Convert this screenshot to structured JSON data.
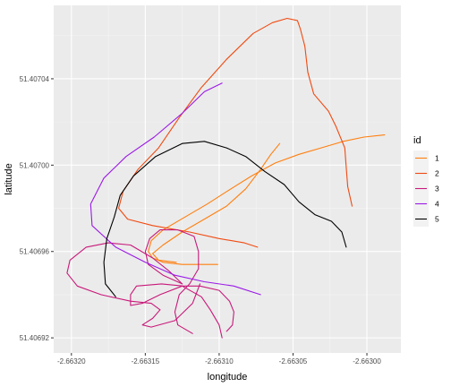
{
  "chart_data": {
    "type": "line",
    "title": "",
    "xlabel": "longitude",
    "ylabel": "latitude",
    "xlim": [
      -2.663212,
      -2.662977
    ],
    "ylim": [
      51.406913,
      51.407074
    ],
    "x_ticks": [
      -2.6632,
      -2.66315,
      -2.6631,
      -2.66305,
      -2.663
    ],
    "x_tick_labels": [
      "-2.66320",
      "-2.66315",
      "-2.66310",
      "-2.66305",
      "-2.66300"
    ],
    "y_ticks": [
      51.40692,
      51.40696,
      51.407,
      51.40704
    ],
    "y_tick_labels": [
      "51.40692",
      "51.40696",
      "51.40700",
      "51.40704"
    ],
    "grid": true,
    "legend": {
      "title": "id",
      "position": "right"
    },
    "series": [
      {
        "name": "1",
        "color": "#ff7f0e",
        "points": [
          [
            -2.662988,
            51.407014
          ],
          [
            -2.663002,
            51.407013
          ],
          [
            -2.663016,
            51.407011
          ],
          [
            -2.663031,
            51.407008
          ],
          [
            -2.663046,
            51.407005
          ],
          [
            -2.663062,
            51.407001
          ],
          [
            -2.663078,
            51.406995
          ],
          [
            -2.663092,
            51.406989
          ],
          [
            -2.663108,
            51.406982
          ],
          [
            -2.663123,
            51.406976
          ],
          [
            -2.663138,
            51.40697
          ],
          [
            -2.663146,
            51.406965
          ],
          [
            -2.663148,
            51.40696
          ],
          [
            -2.663145,
            51.406957
          ],
          [
            -2.663138,
            51.406955
          ],
          [
            -2.663125,
            51.406954
          ],
          [
            -2.663111,
            51.406954
          ],
          [
            -2.663101,
            51.406954
          ]
        ]
      },
      {
        "name": "1",
        "color": "#ff7f0e",
        "points": [
          [
            -2.663059,
            51.40701
          ],
          [
            -2.663065,
            51.407005
          ],
          [
            -2.663072,
            51.406998
          ],
          [
            -2.663082,
            51.406989
          ],
          [
            -2.663095,
            51.406981
          ],
          [
            -2.66311,
            51.406975
          ],
          [
            -2.663125,
            51.406969
          ],
          [
            -2.663138,
            51.406963
          ],
          [
            -2.663145,
            51.406959
          ],
          [
            -2.663141,
            51.406956
          ],
          [
            -2.663129,
            51.406955
          ]
        ]
      },
      {
        "name": "2",
        "color": "#f04a11",
        "points": [
          [
            -2.66301,
            51.406981
          ],
          [
            -2.663013,
            51.40699
          ],
          [
            -2.663014,
            51.406999
          ],
          [
            -2.663015,
            51.407008
          ],
          [
            -2.663021,
            51.407018
          ],
          [
            -2.663026,
            51.407025
          ],
          [
            -2.663036,
            51.407033
          ],
          [
            -2.66304,
            51.407043
          ],
          [
            -2.663042,
            51.407055
          ],
          [
            -2.663045,
            51.407063
          ],
          [
            -2.663047,
            51.407067
          ],
          [
            -2.663054,
            51.407068
          ],
          [
            -2.663064,
            51.407066
          ],
          [
            -2.663077,
            51.407061
          ],
          [
            -2.663095,
            51.407049
          ],
          [
            -2.663112,
            51.407036
          ],
          [
            -2.663127,
            51.407022
          ],
          [
            -2.663141,
            51.407008
          ],
          [
            -2.663155,
            51.406998
          ],
          [
            -2.663165,
            51.406988
          ],
          [
            -2.663168,
            51.40698
          ],
          [
            -2.663162,
            51.406975
          ],
          [
            -2.663145,
            51.406972
          ],
          [
            -2.66312,
            51.406969
          ],
          [
            -2.6631,
            51.406966
          ],
          [
            -2.663083,
            51.406964
          ],
          [
            -2.663074,
            51.406962
          ]
        ]
      },
      {
        "name": "3",
        "color": "#c8197a",
        "points": [
          [
            -2.663098,
            51.40692
          ],
          [
            -2.6631,
            51.406926
          ],
          [
            -2.663106,
            51.406933
          ],
          [
            -2.663112,
            51.406939
          ],
          [
            -2.663125,
            51.406944
          ],
          [
            -2.66314,
            51.40694
          ],
          [
            -2.663152,
            51.406936
          ],
          [
            -2.66316,
            51.406935
          ],
          [
            -2.66316,
            51.40694
          ],
          [
            -2.663156,
            51.406944
          ],
          [
            -2.663139,
            51.406945
          ],
          [
            -2.663124,
            51.406944
          ],
          [
            -2.663113,
            51.406944
          ],
          [
            -2.6631,
            51.406942
          ],
          [
            -2.663093,
            51.406937
          ],
          [
            -2.66309,
            51.406932
          ],
          [
            -2.663091,
            51.406926
          ],
          [
            -2.663095,
            51.406923
          ]
        ]
      },
      {
        "name": "3",
        "color": "#c8197a",
        "points": [
          [
            -2.663125,
            51.406945
          ],
          [
            -2.663134,
            51.406951
          ],
          [
            -2.663145,
            51.406957
          ],
          [
            -2.66316,
            51.406963
          ],
          [
            -2.663175,
            51.406964
          ],
          [
            -2.66319,
            51.406962
          ],
          [
            -2.663201,
            51.406956
          ],
          [
            -2.663203,
            51.40695
          ],
          [
            -2.663196,
            51.406944
          ],
          [
            -2.66318,
            51.40694
          ],
          [
            -2.66316,
            51.406937
          ],
          [
            -2.663146,
            51.406936
          ],
          [
            -2.66314,
            51.406933
          ],
          [
            -2.663145,
            51.406929
          ],
          [
            -2.663152,
            51.406926
          ],
          [
            -2.663146,
            51.406925
          ],
          [
            -2.66313,
            51.406928
          ],
          [
            -2.663118,
            51.406936
          ],
          [
            -2.663113,
            51.406945
          ]
        ]
      },
      {
        "name": "3",
        "color": "#c8197a",
        "points": [
          [
            -2.663125,
            51.406945
          ],
          [
            -2.663138,
            51.406949
          ],
          [
            -2.663148,
            51.406954
          ],
          [
            -2.66315,
            51.40696
          ],
          [
            -2.663147,
            51.406966
          ],
          [
            -2.66314,
            51.40697
          ],
          [
            -2.663128,
            51.40697
          ],
          [
            -2.663117,
            51.406967
          ],
          [
            -2.663114,
            51.40696
          ],
          [
            -2.663114,
            51.406952
          ],
          [
            -2.66312,
            51.406945
          ],
          [
            -2.663127,
            51.40694
          ],
          [
            -2.66313,
            51.406932
          ],
          [
            -2.663128,
            51.406926
          ],
          [
            -2.663118,
            51.406922
          ]
        ]
      },
      {
        "name": "4",
        "color": "#9b19e6",
        "points": [
          [
            -2.663072,
            51.40694
          ],
          [
            -2.66309,
            51.406944
          ],
          [
            -2.66311,
            51.406946
          ],
          [
            -2.66313,
            51.406949
          ],
          [
            -2.66315,
            51.406955
          ],
          [
            -2.66317,
            51.406962
          ],
          [
            -2.663186,
            51.406972
          ],
          [
            -2.663187,
            51.406982
          ],
          [
            -2.663178,
            51.406994
          ],
          [
            -2.663163,
            51.407004
          ],
          [
            -2.663144,
            51.407013
          ],
          [
            -2.663125,
            51.407024
          ],
          [
            -2.66311,
            51.407034
          ],
          [
            -2.663098,
            51.407038
          ]
        ]
      },
      {
        "name": "5",
        "color": "#000000",
        "points": [
          [
            -2.66317,
            51.406939
          ],
          [
            -2.663177,
            51.406945
          ],
          [
            -2.663178,
            51.406955
          ],
          [
            -2.663176,
            51.406966
          ],
          [
            -2.663171,
            51.406976
          ],
          [
            -2.663167,
            51.406986
          ],
          [
            -2.663158,
            51.406995
          ],
          [
            -2.663143,
            51.407004
          ],
          [
            -2.663125,
            51.40701
          ],
          [
            -2.66311,
            51.407011
          ],
          [
            -2.663095,
            51.407008
          ],
          [
            -2.663082,
            51.407004
          ],
          [
            -2.663069,
            51.406997
          ],
          [
            -2.663056,
            51.406991
          ],
          [
            -2.663046,
            51.406983
          ],
          [
            -2.663035,
            51.406977
          ],
          [
            -2.663024,
            51.406974
          ],
          [
            -2.663017,
            51.406969
          ],
          [
            -2.663014,
            51.406962
          ]
        ]
      }
    ],
    "legend_entries": [
      {
        "label": "1",
        "color": "#ff7f0e"
      },
      {
        "label": "2",
        "color": "#f04a11"
      },
      {
        "label": "3",
        "color": "#c8197a"
      },
      {
        "label": "4",
        "color": "#9b19e6"
      },
      {
        "label": "5",
        "color": "#000000"
      }
    ],
    "colors": {
      "panel": "#ebebeb",
      "grid_major": "#ffffff",
      "grid_minor": "#f5f5f5",
      "legend_key": "#f2f2f2"
    }
  }
}
